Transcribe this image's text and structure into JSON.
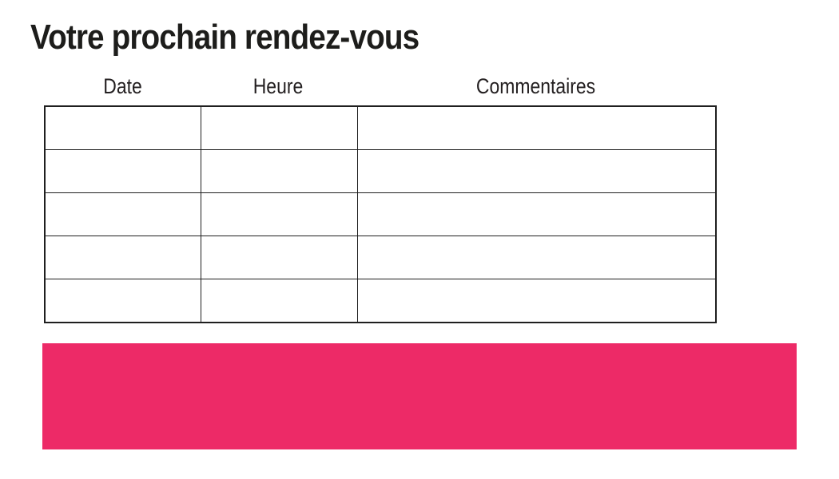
{
  "page": {
    "title": "Votre prochain rendez-vous"
  },
  "appointment_table": {
    "headers": [
      "Date",
      "Heure",
      "Commentaires"
    ],
    "rows": [
      [
        "",
        "",
        ""
      ],
      [
        "",
        "",
        ""
      ],
      [
        "",
        "",
        ""
      ],
      [
        "",
        "",
        ""
      ],
      [
        "",
        "",
        ""
      ]
    ]
  },
  "colors": {
    "accent_pink": "#ED2A67",
    "text_dark": "#1D1D1B",
    "table_border": "#1F1F1F"
  }
}
